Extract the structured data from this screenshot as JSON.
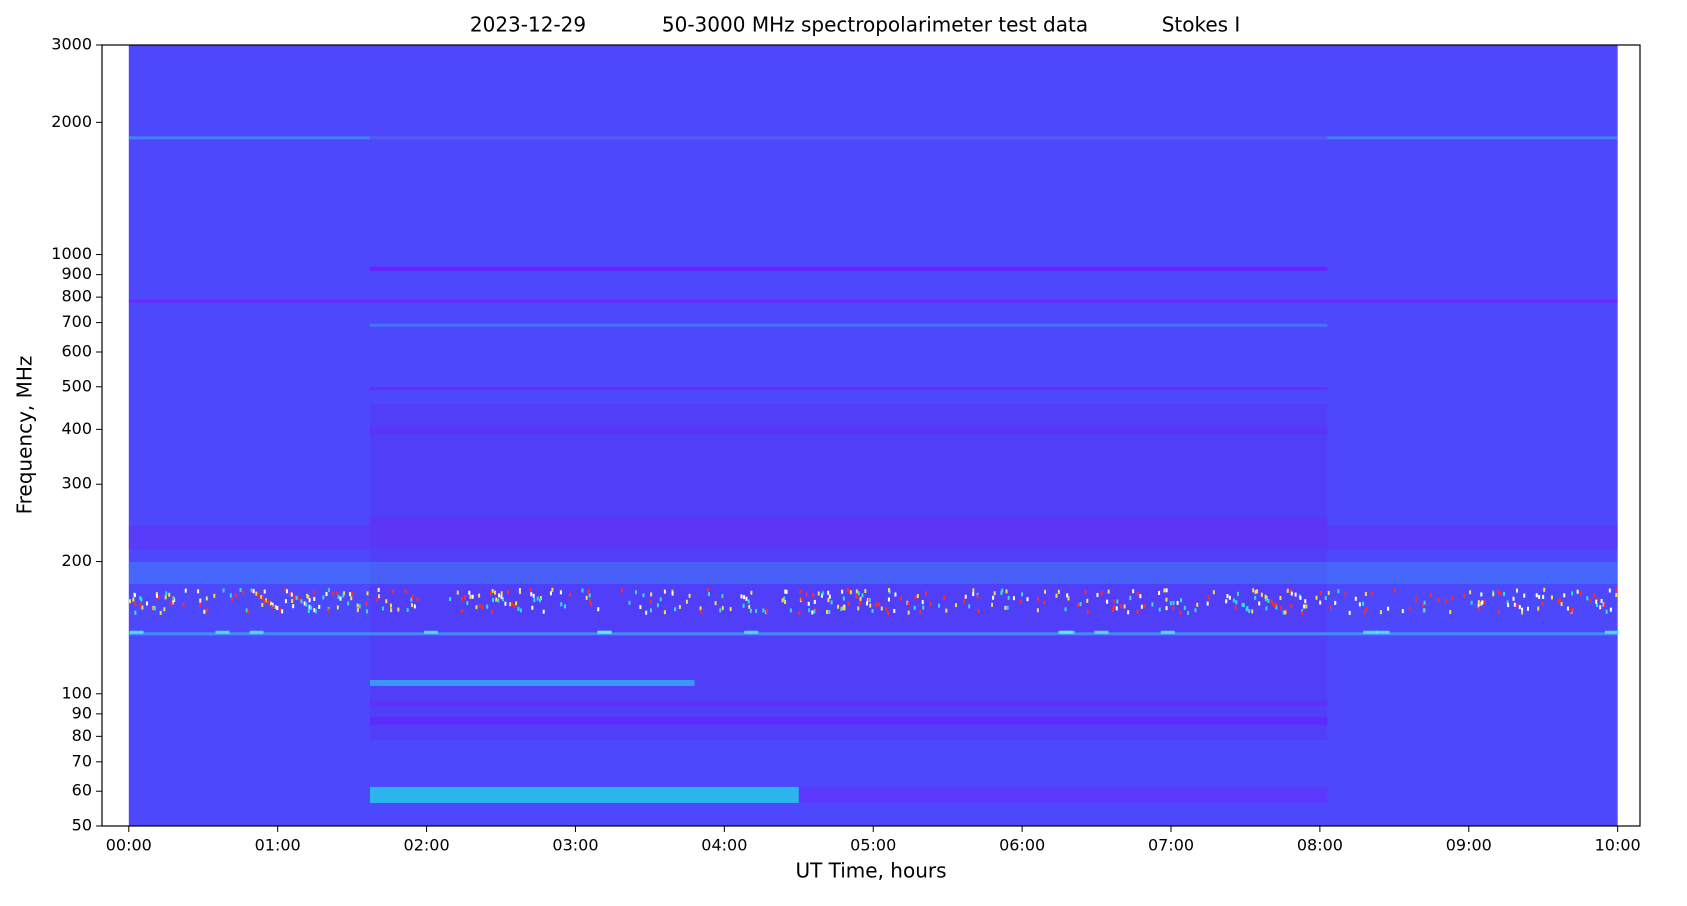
{
  "chart_data": {
    "type": "spectrogram",
    "title_parts": [
      "2023-12-29",
      "50-3000 MHz spectropolarimeter test data",
      "Stokes I"
    ],
    "x_label": "UT Time, hours",
    "y_label": "Frequency, MHz",
    "xlim": [
      -0.18,
      10.15
    ],
    "xticks": [
      {
        "value": 0,
        "label": "00:00"
      },
      {
        "value": 1,
        "label": "01:00"
      },
      {
        "value": 2,
        "label": "02:00"
      },
      {
        "value": 3,
        "label": "03:00"
      },
      {
        "value": 4,
        "label": "04:00"
      },
      {
        "value": 5,
        "label": "05:00"
      },
      {
        "value": 6,
        "label": "06:00"
      },
      {
        "value": 7,
        "label": "07:00"
      },
      {
        "value": 8,
        "label": "08:00"
      },
      {
        "value": 9,
        "label": "09:00"
      },
      {
        "value": 10,
        "label": "10:00"
      }
    ],
    "ylim": [
      50,
      3000
    ],
    "y_scale": "log",
    "yticks": [
      50,
      60,
      70,
      80,
      90,
      100,
      200,
      300,
      400,
      500,
      600,
      700,
      800,
      900,
      1000,
      2000,
      3000
    ]
  }
}
